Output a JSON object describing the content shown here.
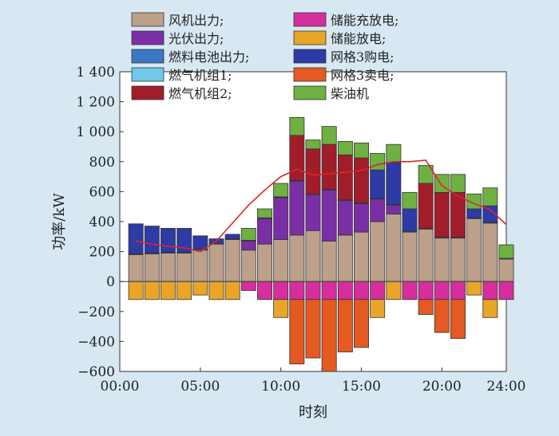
{
  "chart_data": {
    "type": "bar",
    "stacked": true,
    "xlabel": "时刻",
    "ylabel": "功率/kW",
    "xlim": [
      0,
      24
    ],
    "ylim": [
      -600,
      1400
    ],
    "x_ticks": [
      {
        "value": 0,
        "label": "00:00"
      },
      {
        "value": 5,
        "label": "05:00"
      },
      {
        "value": 10,
        "label": "10:00"
      },
      {
        "value": 15,
        "label": "15:00"
      },
      {
        "value": 20,
        "label": "20:00"
      },
      {
        "value": 24,
        "label": "24:00"
      }
    ],
    "y_ticks": [
      {
        "value": 1400,
        "label": "1 400"
      },
      {
        "value": 1200,
        "label": "1 200"
      },
      {
        "value": 1000,
        "label": "1 000"
      },
      {
        "value": 800,
        "label": "800"
      },
      {
        "value": 600,
        "label": "600"
      },
      {
        "value": 400,
        "label": "400"
      },
      {
        "value": 200,
        "label": "200"
      },
      {
        "value": 0,
        "label": "0"
      },
      {
        "value": -200,
        "label": "−200"
      },
      {
        "value": -400,
        "label": "−400"
      },
      {
        "value": -600,
        "label": "−600"
      }
    ],
    "hours": [
      1,
      2,
      3,
      4,
      5,
      6,
      7,
      8,
      9,
      10,
      11,
      12,
      13,
      14,
      15,
      16,
      17,
      18,
      19,
      20,
      21,
      22,
      23,
      24
    ],
    "series": [
      {
        "name": "风机出力;",
        "color": "#bba08a",
        "values": [
          180,
          185,
          190,
          190,
          210,
          250,
          280,
          210,
          250,
          280,
          310,
          340,
          270,
          310,
          330,
          400,
          450,
          330,
          350,
          290,
          290,
          420,
          390,
          150
        ]
      },
      {
        "name": "光伏出力;",
        "color": "#7b2fa5",
        "values": [
          0,
          0,
          0,
          0,
          0,
          0,
          0,
          60,
          170,
          280,
          360,
          240,
          340,
          230,
          190,
          150,
          60,
          0,
          0,
          0,
          0,
          0,
          0,
          0
        ]
      },
      {
        "name": "燃料电池出力;",
        "color": "#3a78c4",
        "values": [
          5,
          5,
          5,
          5,
          5,
          5,
          5,
          5,
          5,
          5,
          5,
          5,
          5,
          5,
          5,
          5,
          5,
          5,
          5,
          5,
          5,
          5,
          5,
          5
        ]
      },
      {
        "name": "燃气机组1;",
        "color": "#72c8ea",
        "values": [
          0,
          0,
          0,
          0,
          0,
          0,
          0,
          0,
          0,
          0,
          0,
          0,
          0,
          0,
          0,
          0,
          0,
          0,
          0,
          0,
          0,
          0,
          0,
          0
        ]
      },
      {
        "name": "燃气机组2;",
        "color": "#a21d2a",
        "values": [
          0,
          0,
          0,
          0,
          0,
          0,
          0,
          0,
          0,
          0,
          300,
          300,
          300,
          300,
          300,
          0,
          0,
          0,
          300,
          300,
          300,
          0,
          0,
          0
        ]
      },
      {
        "name": "储能充放电;",
        "color": "#d62e9c",
        "values": [
          0,
          0,
          0,
          0,
          0,
          0,
          0,
          -60,
          -120,
          -120,
          -120,
          -120,
          -120,
          -120,
          -120,
          -120,
          0,
          -120,
          -120,
          -120,
          -120,
          0,
          -120,
          -120
        ]
      },
      {
        "name": "储能放电;",
        "color": "#e8a628",
        "values": [
          -120,
          -120,
          -120,
          -120,
          -90,
          -120,
          -120,
          0,
          0,
          -120,
          0,
          0,
          0,
          0,
          0,
          -120,
          -120,
          0,
          0,
          0,
          0,
          -90,
          -120,
          0
        ]
      },
      {
        "name": "网格3购电;",
        "color": "#2e3aa6",
        "values": [
          200,
          180,
          160,
          160,
          90,
          30,
          30,
          0,
          0,
          0,
          0,
          0,
          0,
          0,
          0,
          190,
          280,
          150,
          0,
          0,
          0,
          60,
          110,
          0
        ]
      },
      {
        "name": "网格3卖电;",
        "color": "#e45a22",
        "values": [
          0,
          0,
          0,
          0,
          0,
          0,
          0,
          0,
          0,
          0,
          -430,
          -390,
          -480,
          -350,
          -320,
          0,
          0,
          0,
          -100,
          -220,
          -260,
          0,
          0,
          0
        ]
      },
      {
        "name": "柴油机",
        "color": "#6fb043",
        "values": [
          0,
          0,
          0,
          0,
          0,
          0,
          0,
          80,
          60,
          90,
          120,
          60,
          120,
          90,
          100,
          110,
          120,
          110,
          120,
          120,
          120,
          100,
          120,
          90
        ]
      }
    ],
    "load_line": {
      "color": "#e0242a",
      "values": [
        270,
        250,
        235,
        225,
        200,
        270,
        390,
        510,
        610,
        700,
        750,
        710,
        720,
        730,
        740,
        780,
        800,
        800,
        810,
        640,
        570,
        520,
        480,
        380
      ]
    }
  },
  "legend": {
    "left": [
      {
        "label": "风机出力;",
        "color": "#bba08a"
      },
      {
        "label": "光伏出力;",
        "color": "#7b2fa5"
      },
      {
        "label": "燃料电池出力;",
        "color": "#3a78c4"
      },
      {
        "label": "燃气机组1;",
        "color": "#72c8ea"
      },
      {
        "label": "燃气机组2;",
        "color": "#a21d2a"
      }
    ],
    "right": [
      {
        "label": "储能充放电;",
        "color": "#d62e9c"
      },
      {
        "label": "储能放电;",
        "color": "#e8a628"
      },
      {
        "label": "网格3购电;",
        "color": "#2e3aa6"
      },
      {
        "label": "网格3卖电;",
        "color": "#e45a22"
      },
      {
        "label": "柴油机",
        "color": "#6fb043"
      }
    ]
  }
}
